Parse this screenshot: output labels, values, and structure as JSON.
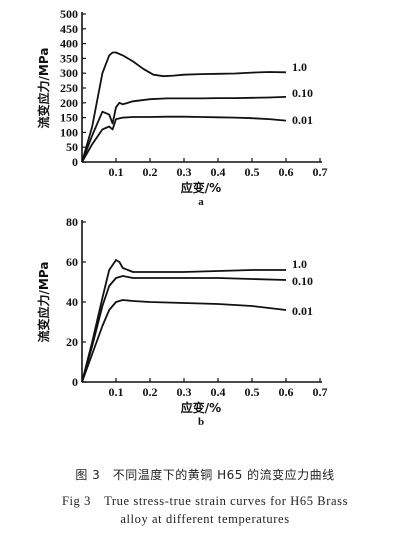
{
  "chart_data": [
    {
      "type": "line",
      "panel_label": "a",
      "xlabel": "应变/%",
      "ylabel": "流变应力/MPa",
      "xlim": [
        0.0,
        0.7
      ],
      "ylim": [
        0,
        500
      ],
      "xticks": [
        "0.1",
        "0.2",
        "0.3",
        "0.4",
        "0.5",
        "0.6",
        "0.7"
      ],
      "yticks": [
        "0",
        "50",
        "100",
        "150",
        "200",
        "250",
        "300",
        "350",
        "400",
        "450",
        "500"
      ],
      "grid": false,
      "series": [
        {
          "name": "1.0",
          "x": [
            0.0,
            0.03,
            0.06,
            0.08,
            0.09,
            0.1,
            0.12,
            0.15,
            0.18,
            0.21,
            0.24,
            0.27,
            0.3,
            0.35,
            0.4,
            0.45,
            0.5,
            0.55,
            0.6
          ],
          "y": [
            0,
            120,
            300,
            360,
            370,
            370,
            360,
            340,
            315,
            295,
            290,
            292,
            295,
            297,
            298,
            299,
            302,
            304,
            303
          ]
        },
        {
          "name": "0.10",
          "x": [
            0.0,
            0.03,
            0.06,
            0.08,
            0.09,
            0.1,
            0.11,
            0.12,
            0.15,
            0.2,
            0.25,
            0.3,
            0.35,
            0.4,
            0.45,
            0.5,
            0.55,
            0.6
          ],
          "y": [
            0,
            90,
            170,
            160,
            130,
            185,
            200,
            195,
            205,
            212,
            215,
            215,
            215,
            216,
            216,
            217,
            218,
            220
          ]
        },
        {
          "name": "0.01",
          "x": [
            0.0,
            0.03,
            0.06,
            0.08,
            0.09,
            0.1,
            0.12,
            0.15,
            0.2,
            0.25,
            0.3,
            0.35,
            0.4,
            0.45,
            0.5,
            0.55,
            0.6
          ],
          "y": [
            0,
            60,
            110,
            120,
            110,
            145,
            150,
            152,
            152,
            153,
            153,
            152,
            151,
            150,
            148,
            145,
            140
          ]
        }
      ]
    },
    {
      "type": "line",
      "panel_label": "b",
      "xlabel": "应变/%",
      "ylabel": "流变应力/MPa",
      "xlim": [
        0.0,
        0.7
      ],
      "ylim": [
        0,
        80
      ],
      "xticks": [
        "0.1",
        "0.2",
        "0.3",
        "0.4",
        "0.5",
        "0.6",
        "0.7"
      ],
      "yticks": [
        "0",
        "20",
        "40",
        "60",
        "80"
      ],
      "grid": false,
      "series": [
        {
          "name": "1.0",
          "x": [
            0.0,
            0.03,
            0.06,
            0.08,
            0.1,
            0.11,
            0.12,
            0.15,
            0.2,
            0.3,
            0.4,
            0.5,
            0.6
          ],
          "y": [
            0,
            20,
            42,
            56,
            61,
            60,
            57,
            55,
            55,
            55,
            55.5,
            56,
            56
          ]
        },
        {
          "name": "0.10",
          "x": [
            0.0,
            0.03,
            0.06,
            0.08,
            0.1,
            0.12,
            0.15,
            0.2,
            0.3,
            0.4,
            0.5,
            0.6
          ],
          "y": [
            0,
            18,
            38,
            48,
            52,
            53,
            52,
            52,
            52,
            52,
            51.5,
            51
          ]
        },
        {
          "name": "0.01",
          "x": [
            0.0,
            0.03,
            0.06,
            0.08,
            0.1,
            0.12,
            0.15,
            0.2,
            0.3,
            0.4,
            0.5,
            0.6
          ],
          "y": [
            0,
            14,
            28,
            36,
            40,
            41,
            40.5,
            40,
            39.5,
            39,
            38,
            36
          ]
        }
      ]
    }
  ],
  "caption": {
    "cn": "图 3　不同温度下的黄铜 H65 的流变应力曲线",
    "en_line1": "Fig 3　True stress-true strain curves for H65 Brass",
    "en_line2": "alloy at different temperatures"
  }
}
